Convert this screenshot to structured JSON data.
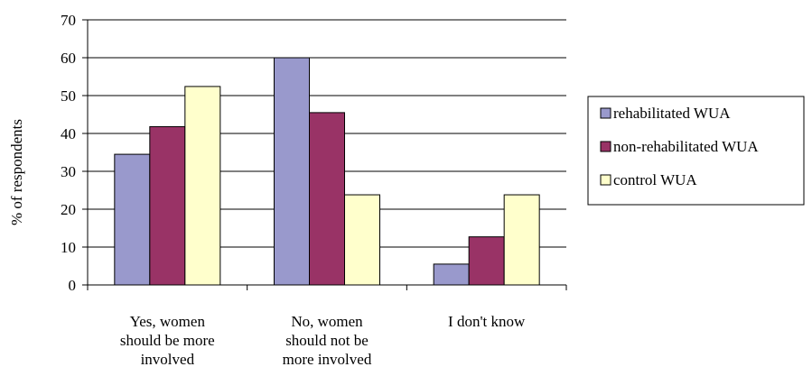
{
  "chart_data": {
    "type": "bar",
    "title": "",
    "xlabel": "",
    "ylabel": "% of respondents",
    "ylim": [
      0,
      70
    ],
    "yticks": [
      0,
      10,
      20,
      30,
      40,
      50,
      60,
      70
    ],
    "grid": true,
    "legend_position": "right",
    "categories": [
      [
        "Yes, women",
        "should be more",
        "involved"
      ],
      [
        "No, women",
        "should not be",
        "more involved"
      ],
      [
        "I don't know"
      ]
    ],
    "series": [
      {
        "name": "rehabilitated WUA",
        "color": "#9999cc",
        "values": [
          34.5,
          60,
          5.5
        ]
      },
      {
        "name": "non-rehabilitated WUA",
        "color": "#993366",
        "values": [
          41.8,
          45.5,
          12.7
        ]
      },
      {
        "name": "control WUA",
        "color": "#ffffcc",
        "values": [
          52.4,
          23.8,
          23.8
        ]
      }
    ]
  }
}
